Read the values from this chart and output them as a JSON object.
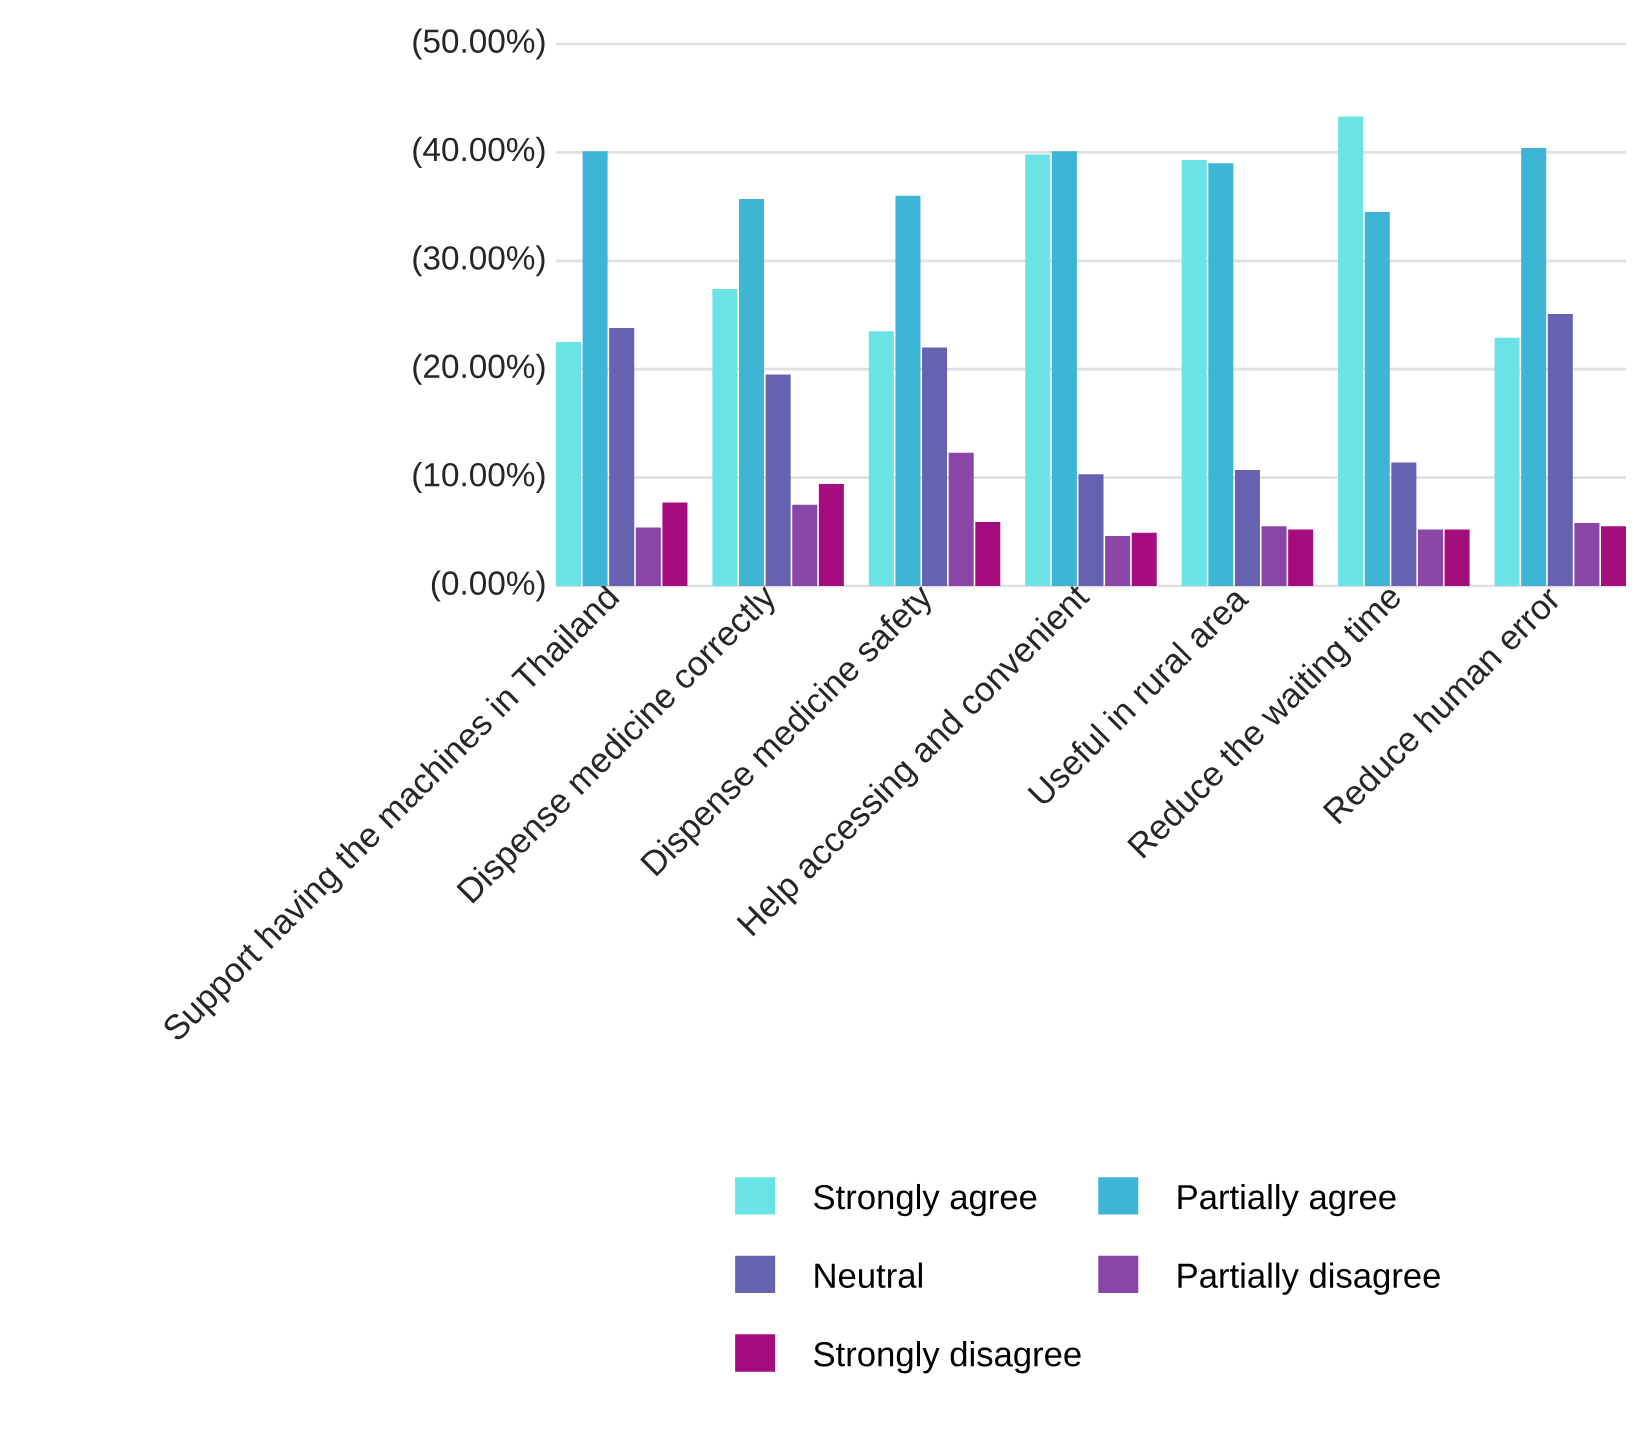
{
  "chart_data": {
    "type": "bar",
    "categories": [
      "Support having the machines in Thailand",
      "Dispense medicine correctly",
      "Dispense medicine safety",
      "Help accessing and convenient",
      "Useful in rural area",
      "Reduce the waiting time",
      "Reduce human error"
    ],
    "series": [
      {
        "name": "Strongly agree",
        "color": "#6ae3e6",
        "values": [
          22.5,
          27.4,
          23.5,
          39.8,
          39.3,
          43.3,
          22.9
        ]
      },
      {
        "name": "Partially agree",
        "color": "#3fb5d5",
        "values": [
          40.1,
          35.7,
          36.0,
          40.1,
          39.0,
          34.5,
          40.4
        ]
      },
      {
        "name": "Neutral",
        "color": "#6661b0",
        "values": [
          23.8,
          19.5,
          22.0,
          10.3,
          10.7,
          11.4,
          25.1
        ]
      },
      {
        "name": "Partially disagree",
        "color": "#8946a6",
        "values": [
          5.4,
          7.5,
          12.3,
          4.6,
          5.5,
          5.2,
          5.8
        ]
      },
      {
        "name": "Strongly disagree",
        "color": "#a50d7f",
        "values": [
          7.7,
          9.4,
          5.9,
          4.9,
          5.2,
          5.2,
          5.5
        ]
      }
    ],
    "ylim": [
      0,
      50
    ],
    "yticks": [
      {
        "value": 0,
        "label": "(0.00%)"
      },
      {
        "value": 10,
        "label": "(10.00%)"
      },
      {
        "value": 20,
        "label": "(20.00%)"
      },
      {
        "value": 30,
        "label": "(30.00%)"
      },
      {
        "value": 40,
        "label": "(40.00%)"
      },
      {
        "value": 50,
        "label": "(50.00%)"
      }
    ],
    "grid": "y",
    "legend": "bottom"
  }
}
